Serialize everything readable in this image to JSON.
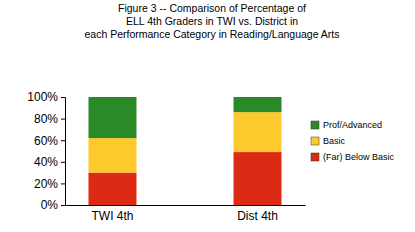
{
  "chart_data": {
    "type": "bar",
    "stacked": true,
    "title": "Figure 3 -- Comparison of Percentage of\nELL 4th Graders in TWI vs. District in\neach Performance Category in Reading/Language Arts",
    "categories": [
      "TWI 4th",
      "Dist 4th"
    ],
    "series": [
      {
        "name": "(Far) Below Basic",
        "color": "#dd2a14",
        "values": [
          30,
          49
        ]
      },
      {
        "name": "Basic",
        "color": "#fcca2c",
        "values": [
          32,
          37
        ]
      },
      {
        "name": "Prof/Advanced",
        "color": "#2a8a2a",
        "values": [
          38,
          14
        ]
      }
    ],
    "ylim": [
      0,
      100
    ],
    "yticks": [
      {
        "value": 0,
        "label": "0%"
      },
      {
        "value": 20,
        "label": "20%"
      },
      {
        "value": 40,
        "label": "40%"
      },
      {
        "value": 60,
        "label": "60%"
      },
      {
        "value": 80,
        "label": "80%"
      },
      {
        "value": 100,
        "label": "100%"
      }
    ],
    "grid": false,
    "legend": "right"
  }
}
